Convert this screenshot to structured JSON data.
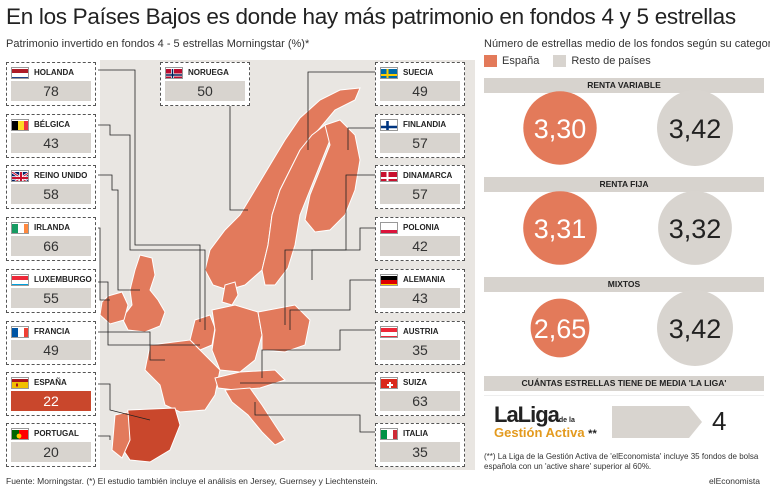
{
  "title": "En los Países Bajos es donde hay más patrimonio en fondos 4 y 5 estrellas",
  "left_subtitle": "Patrimonio invertido en fondos 4 - 5 estrellas Morningstar (%)*",
  "right_subtitle": "Número de estrellas medio de los fondos según su categoría",
  "legend": {
    "spain": "España",
    "rest": "Resto de países"
  },
  "colors": {
    "spain": "#c9472c",
    "spain_light": "#e37a5a",
    "rest": "#d8d4cf",
    "map_land": "#e27a5c",
    "map_bg": "#e6e3df"
  },
  "chart_data": {
    "type": "table",
    "countries": [
      {
        "name": "HOLANDA",
        "value": "78",
        "flag": "netherlands"
      },
      {
        "name": "BÉLGICA",
        "value": "43",
        "flag": "belgium"
      },
      {
        "name": "REINO UNIDO",
        "value": "58",
        "flag": "uk"
      },
      {
        "name": "IRLANDA",
        "value": "66",
        "flag": "ireland"
      },
      {
        "name": "LUXEMBURGO",
        "value": "55",
        "flag": "luxembourg"
      },
      {
        "name": "FRANCIA",
        "value": "49",
        "flag": "france"
      },
      {
        "name": "ESPAÑA",
        "value": "22",
        "flag": "spain"
      },
      {
        "name": "PORTUGAL",
        "value": "20",
        "flag": "portugal"
      },
      {
        "name": "NORUEGA",
        "value": "50",
        "flag": "norway"
      },
      {
        "name": "SUECIA",
        "value": "49",
        "flag": "sweden"
      },
      {
        "name": "FINLANDIA",
        "value": "57",
        "flag": "finland"
      },
      {
        "name": "DINAMARCA",
        "value": "57",
        "flag": "denmark"
      },
      {
        "name": "POLONIA",
        "value": "42",
        "flag": "poland"
      },
      {
        "name": "ALEMANIA",
        "value": "43",
        "flag": "germany"
      },
      {
        "name": "AUSTRIA",
        "value": "35",
        "flag": "austria"
      },
      {
        "name": "SUIZA",
        "value": "63",
        "flag": "switzerland"
      },
      {
        "name": "ITALIA",
        "value": "35",
        "flag": "italy"
      }
    ],
    "categories": [
      {
        "name": "RENTA VARIABLE",
        "spain": "3,30",
        "rest": "3,42"
      },
      {
        "name": "RENTA FIJA",
        "spain": "3,31",
        "rest": "3,32"
      },
      {
        "name": "MIXTOS",
        "spain": "2,65",
        "rest": "3,42"
      }
    ],
    "liga": {
      "header": "CUÁNTAS ESTRELLAS TIENE DE MEDIA 'LA LIGA'",
      "logo_line1": "LaLiga",
      "logo_small": "de la",
      "logo_line2": "Gestión Activa",
      "logo_asterisks": "**",
      "value": "4"
    }
  },
  "note": "(**) La Liga de la Gestión Activa de 'elEconomista' incluye 35 fondos de bolsa española con un 'active share' superior al 60%.",
  "footer_source": "Fuente: Morningstar. (*) El estudio también incluye el análisis en Jersey, Guernsey y Liechtenstein.",
  "footer_brand": "elEconomista"
}
